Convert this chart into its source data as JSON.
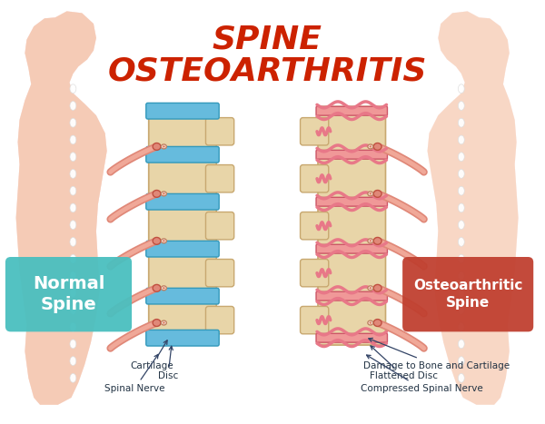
{
  "title_line1": "SPINE",
  "title_line2": "OSTEOARTHRITIS",
  "title_color": "#cc2200",
  "title_fontsize": 26,
  "bg_color": "#ffffff",
  "label_left": "Normal\nSpine",
  "label_right": "Osteoarthritic\nSpine",
  "label_left_bg": "#4abfbf",
  "label_right_bg": "#c04030",
  "label_text_color": "#ffffff",
  "bone_color": "#e8d5a8",
  "bone_edge": "#c8a870",
  "disc_normal_color": "#66bbdd",
  "disc_damaged_color": "#f09898",
  "disc_damaged_edge": "#cc5566",
  "cartilage_normal_color": "#55aacc",
  "cartilage_damaged_color": "#e87888",
  "nerve_color": "#e08878",
  "nerve_fill": "#f0a898",
  "sil_left_color_top": "#f5b8b8",
  "sil_left_color_bot": "#f5e0a0",
  "sil_right_color": "#f5c8a0",
  "spine_dot_color": "#ffffff",
  "annot_color": "#223344",
  "annot_arrow_color": "#334466",
  "annot_fontsize": 7.5
}
